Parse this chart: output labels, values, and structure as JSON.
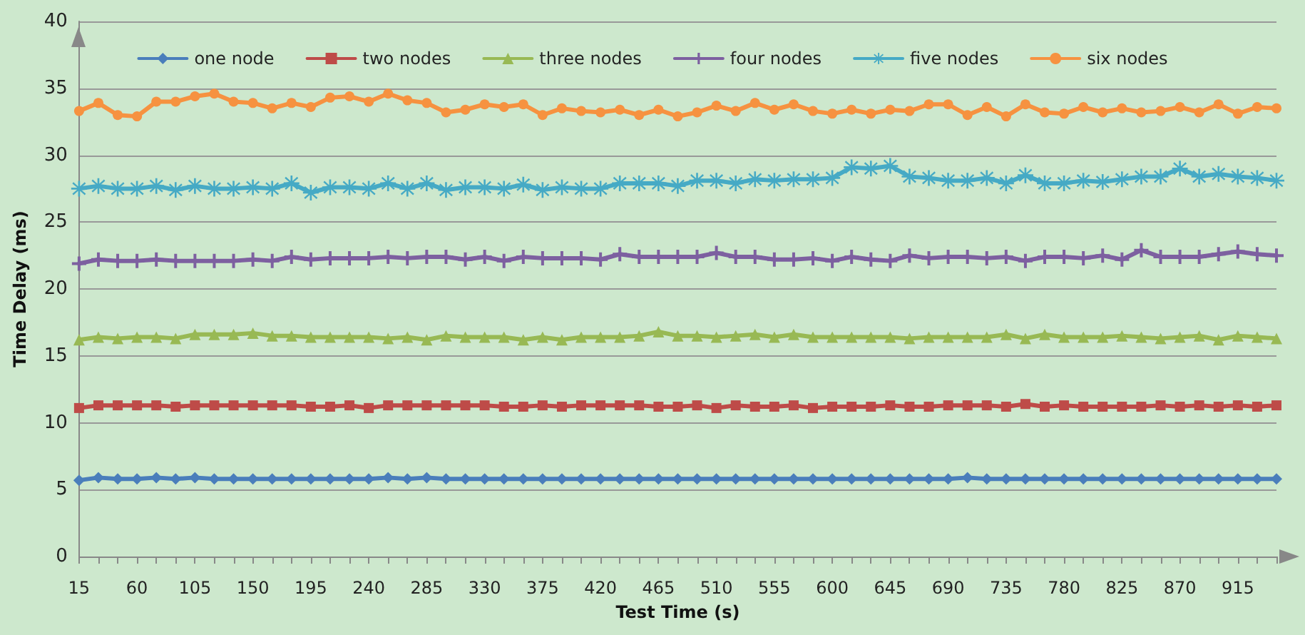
{
  "chart_data": {
    "type": "line",
    "xlabel": "Test Time (s)",
    "ylabel": "Time Delay (ms)",
    "categories": [
      "15",
      null,
      null,
      "60",
      null,
      null,
      "105",
      null,
      null,
      "150",
      null,
      null,
      "195",
      null,
      null,
      "240",
      null,
      null,
      "285",
      null,
      null,
      "330",
      null,
      null,
      "375",
      null,
      null,
      "420",
      null,
      null,
      "465",
      null,
      null,
      "510",
      null,
      null,
      "555",
      null,
      null,
      "600",
      null,
      null,
      "645",
      null,
      null,
      "690",
      null,
      null,
      "735",
      null,
      null,
      "780",
      null,
      null,
      "825",
      null,
      null,
      "870",
      null,
      null,
      "915",
      null,
      null
    ],
    "ylim": [
      0,
      40
    ],
    "yticks": [
      0,
      5,
      10,
      15,
      20,
      25,
      30,
      35,
      40
    ],
    "grid": "y",
    "legend": "top",
    "line_style": "solid",
    "series": [
      {
        "name": "one node",
        "color": "#4a7ebb",
        "marker": "diamond",
        "values": [
          5.7,
          5.9,
          5.8,
          5.8,
          5.9,
          5.8,
          5.9,
          5.8,
          5.8,
          5.8,
          5.8,
          5.8,
          5.8,
          5.8,
          5.8,
          5.8,
          5.9,
          5.8,
          5.9,
          5.8,
          5.8,
          5.8,
          5.8,
          5.8,
          5.8,
          5.8,
          5.8,
          5.8,
          5.8,
          5.8,
          5.8,
          5.8,
          5.8,
          5.8,
          5.8,
          5.8,
          5.8,
          5.8,
          5.8,
          5.8,
          5.8,
          5.8,
          5.8,
          5.8,
          5.8,
          5.8,
          5.9,
          5.8,
          5.8,
          5.8,
          5.8,
          5.8,
          5.8,
          5.8,
          5.8,
          5.8,
          5.8,
          5.8,
          5.8,
          5.8,
          5.8,
          5.8,
          5.8
        ]
      },
      {
        "name": "two nodes",
        "color": "#be4b48",
        "marker": "square",
        "values": [
          11.1,
          11.3,
          11.3,
          11.3,
          11.3,
          11.2,
          11.3,
          11.3,
          11.3,
          11.3,
          11.3,
          11.3,
          11.2,
          11.2,
          11.3,
          11.1,
          11.3,
          11.3,
          11.3,
          11.3,
          11.3,
          11.3,
          11.2,
          11.2,
          11.3,
          11.2,
          11.3,
          11.3,
          11.3,
          11.3,
          11.2,
          11.2,
          11.3,
          11.1,
          11.3,
          11.2,
          11.2,
          11.3,
          11.1,
          11.2,
          11.2,
          11.2,
          11.3,
          11.2,
          11.2,
          11.3,
          11.3,
          11.3,
          11.2,
          11.4,
          11.2,
          11.3,
          11.2,
          11.2,
          11.2,
          11.2,
          11.3,
          11.2,
          11.3,
          11.2,
          11.3,
          11.2,
          11.3
        ]
      },
      {
        "name": "three nodes",
        "color": "#98b954",
        "marker": "triangle",
        "values": [
          16.2,
          16.4,
          16.3,
          16.4,
          16.4,
          16.3,
          16.6,
          16.6,
          16.6,
          16.7,
          16.5,
          16.5,
          16.4,
          16.4,
          16.4,
          16.4,
          16.3,
          16.4,
          16.2,
          16.5,
          16.4,
          16.4,
          16.4,
          16.2,
          16.4,
          16.2,
          16.4,
          16.4,
          16.4,
          16.5,
          16.8,
          16.5,
          16.5,
          16.4,
          16.5,
          16.6,
          16.4,
          16.6,
          16.4,
          16.4,
          16.4,
          16.4,
          16.4,
          16.3,
          16.4,
          16.4,
          16.4,
          16.4,
          16.6,
          16.3,
          16.6,
          16.4,
          16.4,
          16.4,
          16.5,
          16.4,
          16.3,
          16.4,
          16.5,
          16.2,
          16.5,
          16.4,
          16.3
        ]
      },
      {
        "name": "four nodes",
        "color": "#7d60a0",
        "marker": "cross",
        "values": [
          21.9,
          22.2,
          22.1,
          22.1,
          22.2,
          22.1,
          22.1,
          22.1,
          22.1,
          22.2,
          22.1,
          22.4,
          22.2,
          22.3,
          22.3,
          22.3,
          22.4,
          22.3,
          22.4,
          22.4,
          22.2,
          22.4,
          22.1,
          22.4,
          22.3,
          22.3,
          22.3,
          22.2,
          22.6,
          22.4,
          22.4,
          22.4,
          22.4,
          22.7,
          22.4,
          22.4,
          22.2,
          22.2,
          22.3,
          22.1,
          22.4,
          22.2,
          22.1,
          22.5,
          22.3,
          22.4,
          22.4,
          22.3,
          22.4,
          22.1,
          22.4,
          22.4,
          22.3,
          22.5,
          22.2,
          22.9,
          22.4,
          22.4,
          22.4,
          22.6,
          22.8,
          22.6,
          22.5
        ]
      },
      {
        "name": "five nodes",
        "color": "#46aac5",
        "marker": "star",
        "values": [
          27.5,
          27.7,
          27.5,
          27.5,
          27.7,
          27.4,
          27.7,
          27.5,
          27.5,
          27.6,
          27.5,
          27.9,
          27.2,
          27.6,
          27.6,
          27.5,
          27.9,
          27.5,
          27.9,
          27.4,
          27.6,
          27.6,
          27.5,
          27.8,
          27.4,
          27.6,
          27.5,
          27.5,
          27.9,
          27.9,
          27.9,
          27.7,
          28.1,
          28.1,
          27.9,
          28.2,
          28.1,
          28.2,
          28.2,
          28.3,
          29.1,
          29.0,
          29.2,
          28.4,
          28.3,
          28.1,
          28.1,
          28.3,
          27.9,
          28.5,
          27.9,
          27.9,
          28.1,
          28.0,
          28.2,
          28.4,
          28.4,
          29.0,
          28.4,
          28.6,
          28.4,
          28.3,
          28.1
        ]
      },
      {
        "name": "six nodes",
        "color": "#f69240",
        "marker": "circle",
        "values": [
          33.3,
          33.9,
          33.0,
          32.9,
          34.0,
          34.0,
          34.4,
          34.6,
          34.0,
          33.9,
          33.5,
          33.9,
          33.6,
          34.3,
          34.4,
          34.0,
          34.6,
          34.1,
          33.9,
          33.2,
          33.4,
          33.8,
          33.6,
          33.8,
          33.0,
          33.5,
          33.3,
          33.2,
          33.4,
          33.0,
          33.4,
          32.9,
          33.2,
          33.7,
          33.3,
          33.9,
          33.4,
          33.8,
          33.3,
          33.1,
          33.4,
          33.1,
          33.4,
          33.3,
          33.8,
          33.8,
          33.0,
          33.6,
          32.9,
          33.8,
          33.2,
          33.1,
          33.6,
          33.2,
          33.5,
          33.2,
          33.3,
          33.6,
          33.2,
          33.8,
          33.1,
          33.6,
          33.5
        ]
      }
    ]
  }
}
